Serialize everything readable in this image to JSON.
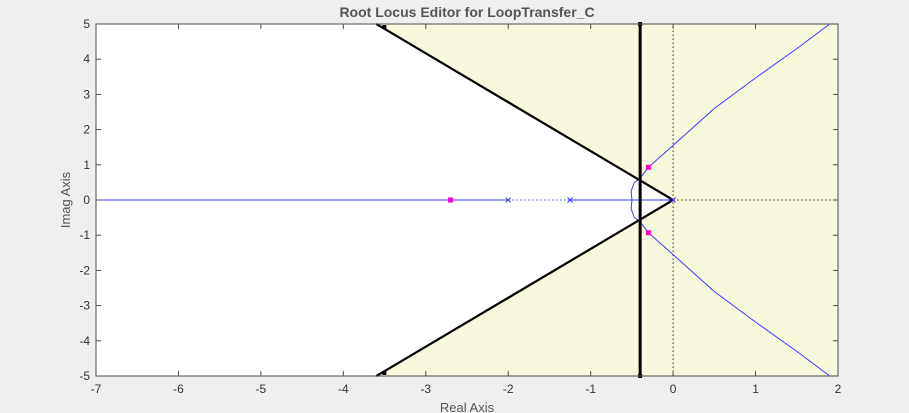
{
  "chart_data": {
    "type": "line",
    "title": "Root Locus Editor for LoopTransfer_C",
    "xlabel": "Real Axis",
    "ylabel": "Imag Axis",
    "xlim": [
      -7,
      2
    ],
    "ylim": [
      -5,
      5
    ],
    "xticks": [
      -7,
      -6,
      -5,
      -4,
      -3,
      -2,
      -1,
      0,
      1,
      2
    ],
    "yticks": [
      -5,
      -4,
      -3,
      -2,
      -1,
      0,
      1,
      2,
      3,
      4,
      5
    ],
    "grid": false,
    "colors": {
      "locus": "#3a3aff",
      "closed_loop_poles": "#ff00cc",
      "design_constraint": "#000000",
      "region": "#f8f8dc",
      "background": "#efefef"
    },
    "open_loop_poles": [
      {
        "re": -2.0,
        "im": 0
      },
      {
        "re": -1.25,
        "im": 0
      },
      {
        "re": 0.0,
        "im": 0
      }
    ],
    "closed_loop_poles": [
      {
        "re": -2.7,
        "im": 0
      },
      {
        "re": -0.3,
        "im": 0.93
      },
      {
        "re": -0.3,
        "im": -0.93
      }
    ],
    "locus_branches": [
      {
        "name": "real-left",
        "points": [
          [
            -7,
            0
          ],
          [
            -2,
            0
          ]
        ]
      },
      {
        "name": "real-right",
        "points": [
          [
            -1.25,
            0
          ],
          [
            -0.5,
            0
          ]
        ]
      },
      {
        "name": "breakaway-arc-upper",
        "points": [
          [
            -0.5,
            0
          ],
          [
            -0.51,
            0.25
          ],
          [
            -0.47,
            0.5
          ],
          [
            -0.4,
            0.62
          ]
        ]
      },
      {
        "name": "breakaway-arc-lower",
        "points": [
          [
            -0.5,
            0
          ],
          [
            -0.51,
            -0.25
          ],
          [
            -0.47,
            -0.5
          ],
          [
            -0.4,
            -0.62
          ]
        ]
      },
      {
        "name": "asymptote-upper",
        "points": [
          [
            -0.4,
            0.62
          ],
          [
            -0.3,
            0.93
          ],
          [
            0,
            1.55
          ],
          [
            0.5,
            2.6
          ],
          [
            1,
            3.47
          ],
          [
            1.5,
            4.3
          ],
          [
            1.9,
            5.0
          ]
        ]
      },
      {
        "name": "asymptote-lower",
        "points": [
          [
            -0.4,
            -0.62
          ],
          [
            -0.3,
            -0.93
          ],
          [
            0,
            -1.55
          ],
          [
            0.5,
            -2.6
          ],
          [
            1,
            -3.47
          ],
          [
            1.5,
            -4.3
          ],
          [
            1.9,
            -5.0
          ]
        ]
      },
      {
        "name": "real-zero-segment",
        "points": [
          [
            -0.5,
            0
          ],
          [
            0,
            0
          ]
        ]
      }
    ],
    "dotted_segments": [
      {
        "name": "pole-gap",
        "points": [
          [
            -2,
            0
          ],
          [
            -1.25,
            0
          ]
        ]
      },
      {
        "name": "real-axis-right",
        "points": [
          [
            0,
            0
          ],
          [
            2,
            0
          ]
        ]
      },
      {
        "name": "imag-axis",
        "points": [
          [
            0,
            -5
          ],
          [
            0,
            5
          ]
        ]
      }
    ],
    "damping_constraint": {
      "vertex": [
        0,
        0
      ],
      "upper_end": [
        -3.6,
        5.0
      ],
      "lower_end": [
        -3.6,
        -5.0
      ]
    },
    "settling_constraint": {
      "re": -0.4
    }
  }
}
